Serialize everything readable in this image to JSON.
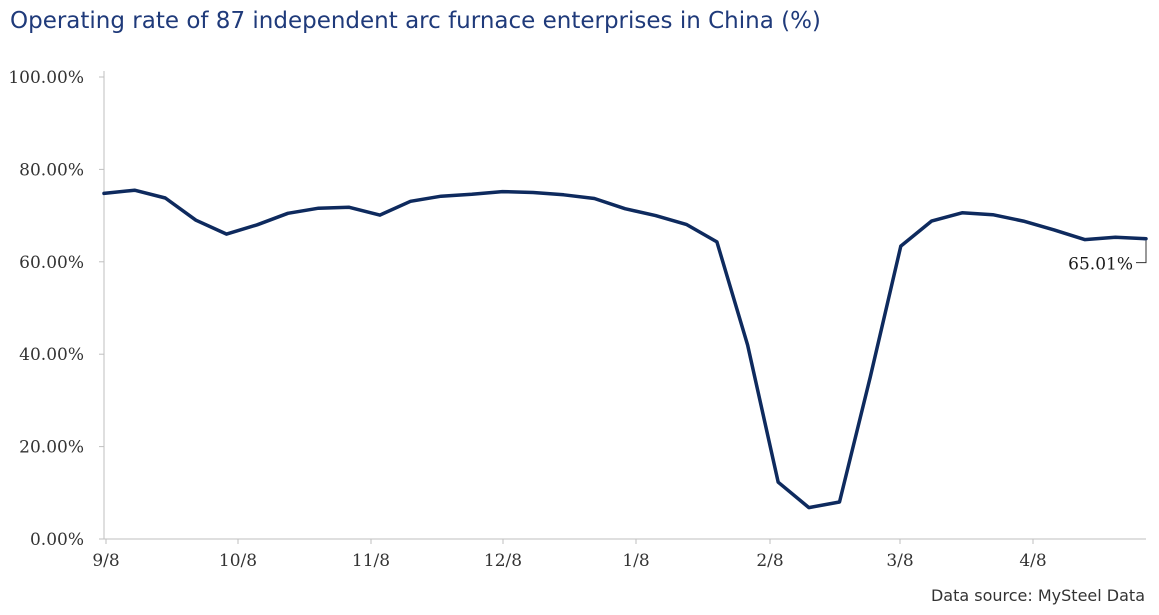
{
  "chart_data": {
    "type": "line",
    "title": "Operating rate of 87 independent arc furnace enterprises in China (%)",
    "xlabel": "",
    "ylabel": "",
    "ylim": [
      0,
      100
    ],
    "y_ticks": [
      "0.00%",
      "20.00%",
      "40.00%",
      "60.00%",
      "80.00%",
      "100.00%"
    ],
    "x_tick_labels": [
      "9/8",
      "10/8",
      "11/8",
      "12/8",
      "1/8",
      "2/8",
      "3/8",
      "4/8"
    ],
    "grid": false,
    "legend": "none",
    "line_color": "#0e2a5e",
    "series": [
      {
        "values": [
          74.8,
          75.5,
          73.8,
          69.0,
          66.0,
          68.0,
          70.5,
          71.6,
          71.8,
          70.1,
          73.1,
          74.2,
          74.6,
          75.2,
          75.0,
          74.5,
          73.7,
          71.5,
          70.0,
          68.1,
          64.3,
          42.0,
          12.3,
          6.8,
          8.0,
          35.0,
          63.4,
          68.8,
          70.6,
          70.2,
          68.8,
          66.9,
          64.8,
          65.3,
          65.01
        ]
      }
    ],
    "last_value_label": "65.01%",
    "source": "Data source: MySteel Data"
  }
}
